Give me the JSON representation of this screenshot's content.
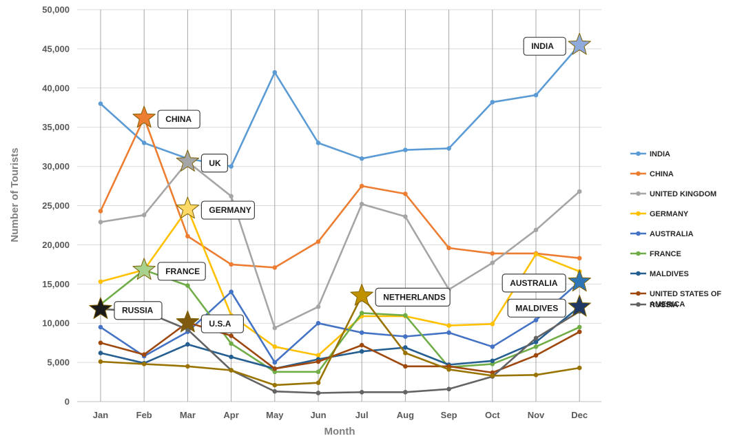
{
  "chart_data": {
    "type": "line",
    "title": "",
    "xlabel": "Month",
    "ylabel": "Number of Tourists",
    "ylim": [
      0,
      50000
    ],
    "ytick_values": [
      0,
      5000,
      10000,
      15000,
      20000,
      25000,
      30000,
      35000,
      40000,
      45000,
      50000
    ],
    "ytick_labels": [
      "0",
      "5,000",
      "10,000",
      "15,000",
      "20,000",
      "25,000",
      "30,000",
      "35,000",
      "40,000",
      "45,000",
      "50,000"
    ],
    "categories": [
      "Jan",
      "Feb",
      "Mar",
      "Apr",
      "May",
      "Jun",
      "Jul",
      "Aug",
      "Sep",
      "Oct",
      "Nov",
      "Dec"
    ],
    "grid": "horizontal and vertical",
    "legend_position": "right",
    "series": [
      {
        "name": "INDIA",
        "color": "#5b9bd5",
        "values": [
          38000,
          33000,
          31000,
          30000,
          42000,
          33000,
          31000,
          32100,
          32300,
          38200,
          39100,
          45500
        ]
      },
      {
        "name": "CHINA",
        "color": "#ed7d31",
        "values": [
          24300,
          36200,
          21100,
          17500,
          17100,
          20400,
          27500,
          26500,
          19600,
          18900,
          18900,
          18300
        ]
      },
      {
        "name": "UNITED KINGDOM",
        "color": "#a5a5a5",
        "values": [
          22900,
          23800,
          30600,
          26200,
          9400,
          12100,
          25200,
          23600,
          14300,
          17700,
          21900,
          26800
        ]
      },
      {
        "name": "GERMANY",
        "color": "#ffc000",
        "values": [
          15300,
          16800,
          24600,
          11000,
          7000,
          5900,
          10900,
          10900,
          9700,
          9900,
          18800,
          16600
        ]
      },
      {
        "name": "AUSTRALIA",
        "color": "#4472c4",
        "values": [
          9500,
          5800,
          8900,
          14000,
          5000,
          10000,
          8800,
          8300,
          8800,
          7000,
          10400,
          15300
        ]
      },
      {
        "name": "FRANCE",
        "color": "#70ad47",
        "values": [
          12400,
          16800,
          14800,
          7400,
          3800,
          3800,
          11300,
          11000,
          4400,
          4800,
          7000,
          9500
        ]
      },
      {
        "name": "MALDIVES",
        "color": "#255e91",
        "values": [
          6200,
          4900,
          7300,
          5700,
          4200,
          5400,
          6400,
          6900,
          4700,
          5200,
          7600,
          12100
        ]
      },
      {
        "name": "UNITED STATES OF AMERICA",
        "color": "#9e480e",
        "values": [
          7500,
          6000,
          10100,
          8400,
          4200,
          5100,
          7200,
          4500,
          4500,
          3700,
          5900,
          8900
        ]
      },
      {
        "name": "RUSSIA",
        "color": "#636363",
        "values": [
          11800,
          11500,
          9200,
          4000,
          1300,
          1100,
          1200,
          1200,
          1600,
          3200,
          8100,
          11500
        ]
      },
      {
        "name": "",
        "color": "#997300",
        "values": [
          5100,
          4800,
          4500,
          4000,
          2100,
          2400,
          13500,
          6200,
          4100,
          3300,
          3400,
          4300
        ]
      }
    ],
    "annotations": [
      {
        "label": "INDIA",
        "series": 0,
        "month": 11,
        "star_color": "#8ea9db",
        "side": "left"
      },
      {
        "label": "CHINA",
        "series": 1,
        "month": 1,
        "star_color": "#ed7d31",
        "side": "right"
      },
      {
        "label": "UK",
        "series": 2,
        "month": 2,
        "star_color": "#a5a5a5",
        "side": "right"
      },
      {
        "label": "GERMANY",
        "series": 3,
        "month": 2,
        "star_color": "#ffd966",
        "side": "right"
      },
      {
        "label": "FRANCE",
        "series": 5,
        "month": 1,
        "star_color": "#a9d18e",
        "side": "right"
      },
      {
        "label": "RUSSIA",
        "series": 8,
        "month": 0,
        "star_color": "#1a1a1a",
        "side": "right"
      },
      {
        "label": "U.S.A",
        "series": 7,
        "month": 2,
        "star_color": "#7f5a10",
        "side": "right"
      },
      {
        "label": "NETHERLANDS",
        "series": 9,
        "month": 6,
        "star_color": "#bf9000",
        "side": "right"
      },
      {
        "label": "AUSTRALIA",
        "series": 4,
        "month": 11,
        "star_color": "#2e75b6",
        "side": "left"
      },
      {
        "label": "MALDIVES",
        "series": 6,
        "month": 11,
        "star_color": "#203864",
        "side": "left"
      }
    ]
  }
}
